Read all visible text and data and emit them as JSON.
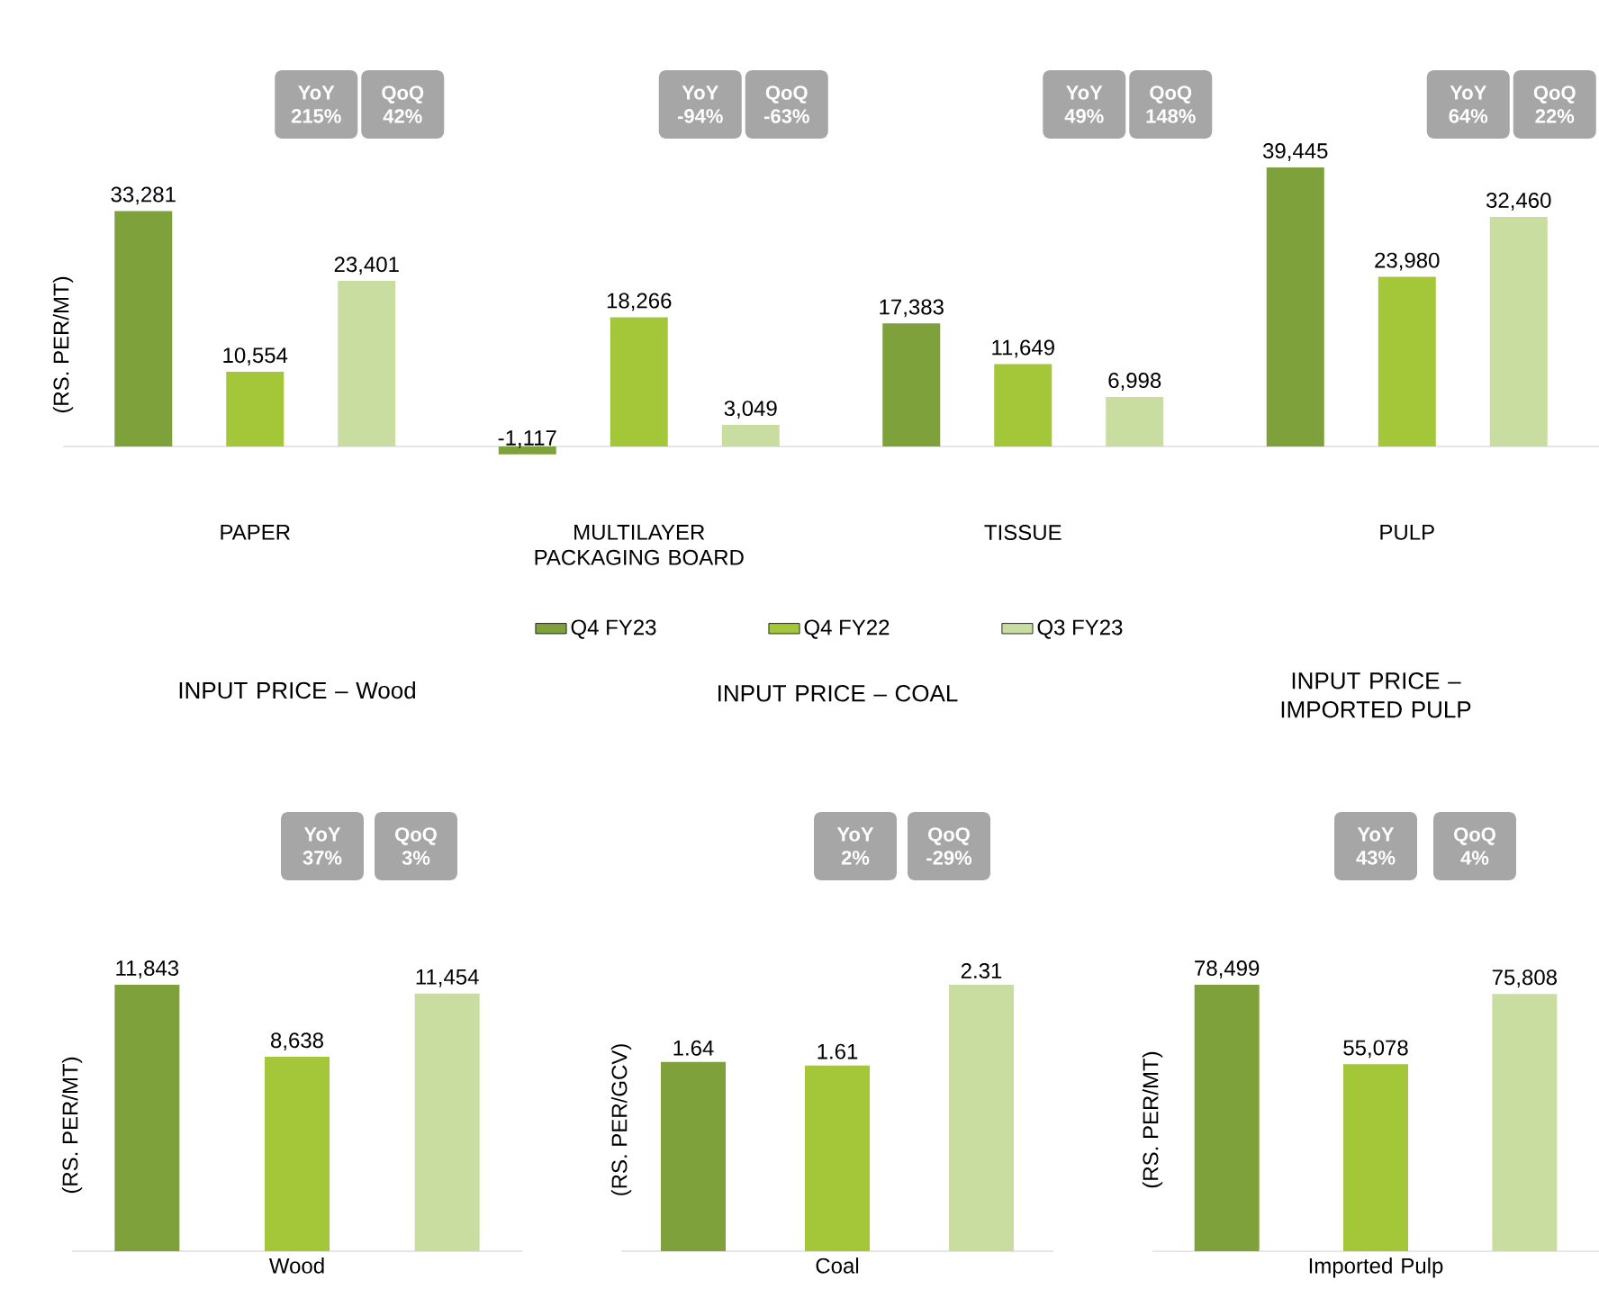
{
  "chart_data": [
    {
      "type": "bar",
      "ylabel": "(RS. PER/MT)",
      "categories": [
        "PAPER",
        "MULTILAYER PACKAGING BOARD",
        "TISSUE",
        "PULP"
      ],
      "legend": "bottom",
      "series": [
        {
          "name": "Q4 FY23",
          "color": "#7fa13b",
          "values": [
            33281,
            -1117,
            17383,
            39445
          ],
          "value_labels": [
            "33,281",
            "-1,117",
            "17,383",
            "39,445"
          ]
        },
        {
          "name": "Q4 FY22",
          "color": "#a4c639",
          "values": [
            10554,
            18266,
            11649,
            23980
          ],
          "value_labels": [
            "10,554",
            "18,266",
            "11,649",
            "23,980"
          ]
        },
        {
          "name": "Q3 FY23",
          "color": "#c9dda0",
          "values": [
            23401,
            3049,
            6998,
            32460
          ],
          "value_labels": [
            "23,401",
            "3,049",
            "6,998",
            "32,460"
          ]
        }
      ],
      "annotations": [
        "YoY 215%",
        "QoQ 42%",
        "YoY -94%",
        "QoQ -63%",
        "YoY 49%",
        "QoQ 148%",
        "YoY 64%",
        "QoQ 22%"
      ]
    },
    {
      "type": "bar",
      "title": "INPUT PRICE – Wood",
      "ylabel": "(RS. PER/MT)",
      "categories": [
        null,
        "Wood",
        null
      ],
      "series": [
        {
          "colors": [
            "#7fa13b",
            "#a4c639",
            "#c9dda0"
          ],
          "values": [
            11843,
            8638,
            11454
          ],
          "value_labels": [
            "11,843",
            "8,638",
            "11,454"
          ]
        }
      ],
      "annotations": [
        "YoY 37%",
        "QoQ 3%"
      ]
    },
    {
      "type": "bar",
      "title": "INPUT PRICE – COAL",
      "ylabel": "(RS. PER/GCV)",
      "categories": [
        null,
        "Coal",
        null
      ],
      "series": [
        {
          "colors": [
            "#7fa13b",
            "#a4c639",
            "#c9dda0"
          ],
          "values": [
            1.64,
            1.61,
            2.31
          ],
          "value_labels": [
            "1.64",
            "1.61",
            "2.31"
          ]
        }
      ],
      "annotations": [
        "YoY 2%",
        "QoQ -29%"
      ]
    },
    {
      "type": "bar",
      "title": "INPUT PRICE – IMPORTED PULP",
      "ylabel": "(RS. PER/MT)",
      "categories": [
        null,
        "Imported Pulp",
        null
      ],
      "series": [
        {
          "colors": [
            "#7fa13b",
            "#a4c639",
            "#c9dda0"
          ],
          "values": [
            78499,
            55078,
            75808
          ],
          "value_labels": [
            "78,499",
            "55,078",
            "75,808"
          ]
        }
      ],
      "annotations": [
        "YoY 43%",
        "QoQ 4%"
      ]
    }
  ]
}
